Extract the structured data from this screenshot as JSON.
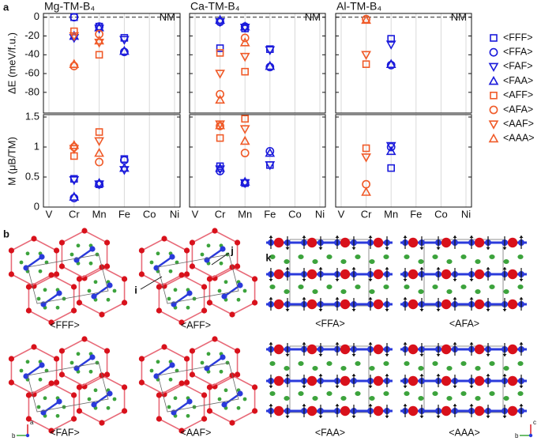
{
  "panel_labels": [
    "a",
    "b"
  ],
  "chart_data": {
    "type": "scatter",
    "categories": [
      "V",
      "Cr",
      "Mn",
      "Fe",
      "Co",
      "Ni"
    ],
    "grid": "x",
    "series": [
      {
        "name": "<FFF>",
        "color": "#1a1adb",
        "marker": "square"
      },
      {
        "name": "<FFA>",
        "color": "#1a1adb",
        "marker": "circle"
      },
      {
        "name": "<FAF>",
        "color": "#1a1adb",
        "marker": "triangle-down"
      },
      {
        "name": "<FAA>",
        "color": "#1a1adb",
        "marker": "triangle-up"
      },
      {
        "name": "<AFF>",
        "color": "#f05a28",
        "marker": "square"
      },
      {
        "name": "<AFA>",
        "color": "#f05a28",
        "marker": "circle"
      },
      {
        "name": "<AAF>",
        "color": "#f05a28",
        "marker": "triangle-down"
      },
      {
        "name": "<AAA>",
        "color": "#f05a28",
        "marker": "triangle-up"
      }
    ],
    "energy_axis": {
      "label": "ΔE (meV/f.u.)",
      "ylim": [
        -102,
        4
      ],
      "yticks": [
        0,
        -20,
        -40,
        -60,
        -80
      ],
      "reference": 0,
      "annotation": "NM"
    },
    "moment_axis": {
      "label": "M (μB/TM)",
      "ylim": [
        0,
        1.54
      ],
      "yticks": [
        0,
        0.5,
        1,
        1.5
      ]
    },
    "panels": [
      {
        "title": "Mg-TM-B₄",
        "energy": [
          [
            null,
            0,
            -10,
            -22,
            null,
            null
          ],
          [
            null,
            0,
            -10,
            -37,
            null,
            null
          ],
          [
            null,
            -22,
            -12,
            -24,
            null,
            null
          ],
          [
            null,
            -20,
            -11,
            -36,
            null,
            null
          ],
          [
            null,
            -15,
            -40,
            null,
            null,
            null
          ],
          [
            null,
            -52,
            -18,
            null,
            null,
            null
          ],
          [
            null,
            -20,
            -27,
            null,
            null,
            null
          ],
          [
            null,
            -50,
            -25,
            null,
            null,
            null
          ]
        ],
        "moment": [
          [
            null,
            0.47,
            0.38,
            0.8,
            null,
            null
          ],
          [
            null,
            0.15,
            0.38,
            0.78,
            null,
            null
          ],
          [
            null,
            0.45,
            0.38,
            0.62,
            null,
            null
          ],
          [
            null,
            0.17,
            0.4,
            0.65,
            null,
            null
          ],
          [
            null,
            0.85,
            1.25,
            null,
            null,
            null
          ],
          [
            null,
            1.0,
            0.75,
            null,
            null,
            null
          ],
          [
            null,
            0.97,
            1.1,
            null,
            null,
            null
          ],
          [
            null,
            1.03,
            0.9,
            null,
            null,
            null
          ]
        ]
      },
      {
        "title": "Ca-TM-B₄",
        "energy": [
          [
            null,
            -33,
            -12,
            -34,
            null,
            null
          ],
          [
            null,
            -5,
            -10,
            -53,
            null,
            null
          ],
          [
            null,
            -5,
            -11,
            -35,
            null,
            null
          ],
          [
            null,
            -3,
            -10,
            -52,
            null,
            null
          ],
          [
            null,
            -38,
            -58,
            null,
            null,
            null
          ],
          [
            null,
            -82,
            -22,
            null,
            null,
            null
          ],
          [
            null,
            -60,
            -42,
            null,
            null,
            null
          ],
          [
            null,
            -88,
            -27,
            null,
            null,
            null
          ]
        ],
        "moment": [
          [
            null,
            0.68,
            0.4,
            0.7,
            null,
            null
          ],
          [
            null,
            0.6,
            0.4,
            0.93,
            null,
            null
          ],
          [
            null,
            0.63,
            0.4,
            0.7,
            null,
            null
          ],
          [
            null,
            0.65,
            0.42,
            0.9,
            null,
            null
          ],
          [
            null,
            1.15,
            1.47,
            null,
            null,
            null
          ],
          [
            null,
            1.35,
            0.9,
            null,
            null,
            null
          ],
          [
            null,
            1.38,
            1.3,
            null,
            null,
            null
          ],
          [
            null,
            1.36,
            1.1,
            null,
            null,
            null
          ]
        ]
      },
      {
        "title": "Al-TM-B₄",
        "energy": [
          [
            null,
            null,
            -23,
            null,
            null,
            null
          ],
          [
            null,
            null,
            -51,
            null,
            null,
            null
          ],
          [
            null,
            null,
            -29,
            null,
            null,
            null
          ],
          [
            null,
            null,
            -50,
            null,
            null,
            null
          ],
          [
            null,
            -50,
            null,
            null,
            null,
            null
          ],
          [
            null,
            -2,
            null,
            null,
            null,
            null
          ],
          [
            null,
            -40,
            null,
            null,
            null,
            null
          ],
          [
            null,
            -3,
            null,
            null,
            null,
            null
          ]
        ],
        "moment": [
          [
            null,
            null,
            0.65,
            null,
            null,
            null
          ],
          [
            null,
            null,
            1.0,
            null,
            null,
            null
          ],
          [
            null,
            null,
            1.02,
            null,
            null,
            null
          ],
          [
            null,
            null,
            0.93,
            null,
            null,
            null
          ],
          [
            null,
            0.98,
            null,
            null,
            null,
            null
          ],
          [
            null,
            0.38,
            null,
            null,
            null,
            null
          ],
          [
            null,
            0.83,
            null,
            null,
            null,
            null
          ],
          [
            null,
            0.25,
            null,
            null,
            null,
            null
          ]
        ]
      }
    ]
  },
  "structures": {
    "views": [
      "<FFF>",
      "<AFF>",
      "<FAF>",
      "<AAF>",
      "<FFA>",
      "<AFA>",
      "<FAA>",
      "<AAA>"
    ],
    "sites": [
      "i",
      "j",
      "k"
    ],
    "axes": [
      [
        "a",
        "b"
      ],
      [
        "c",
        "b"
      ]
    ]
  }
}
